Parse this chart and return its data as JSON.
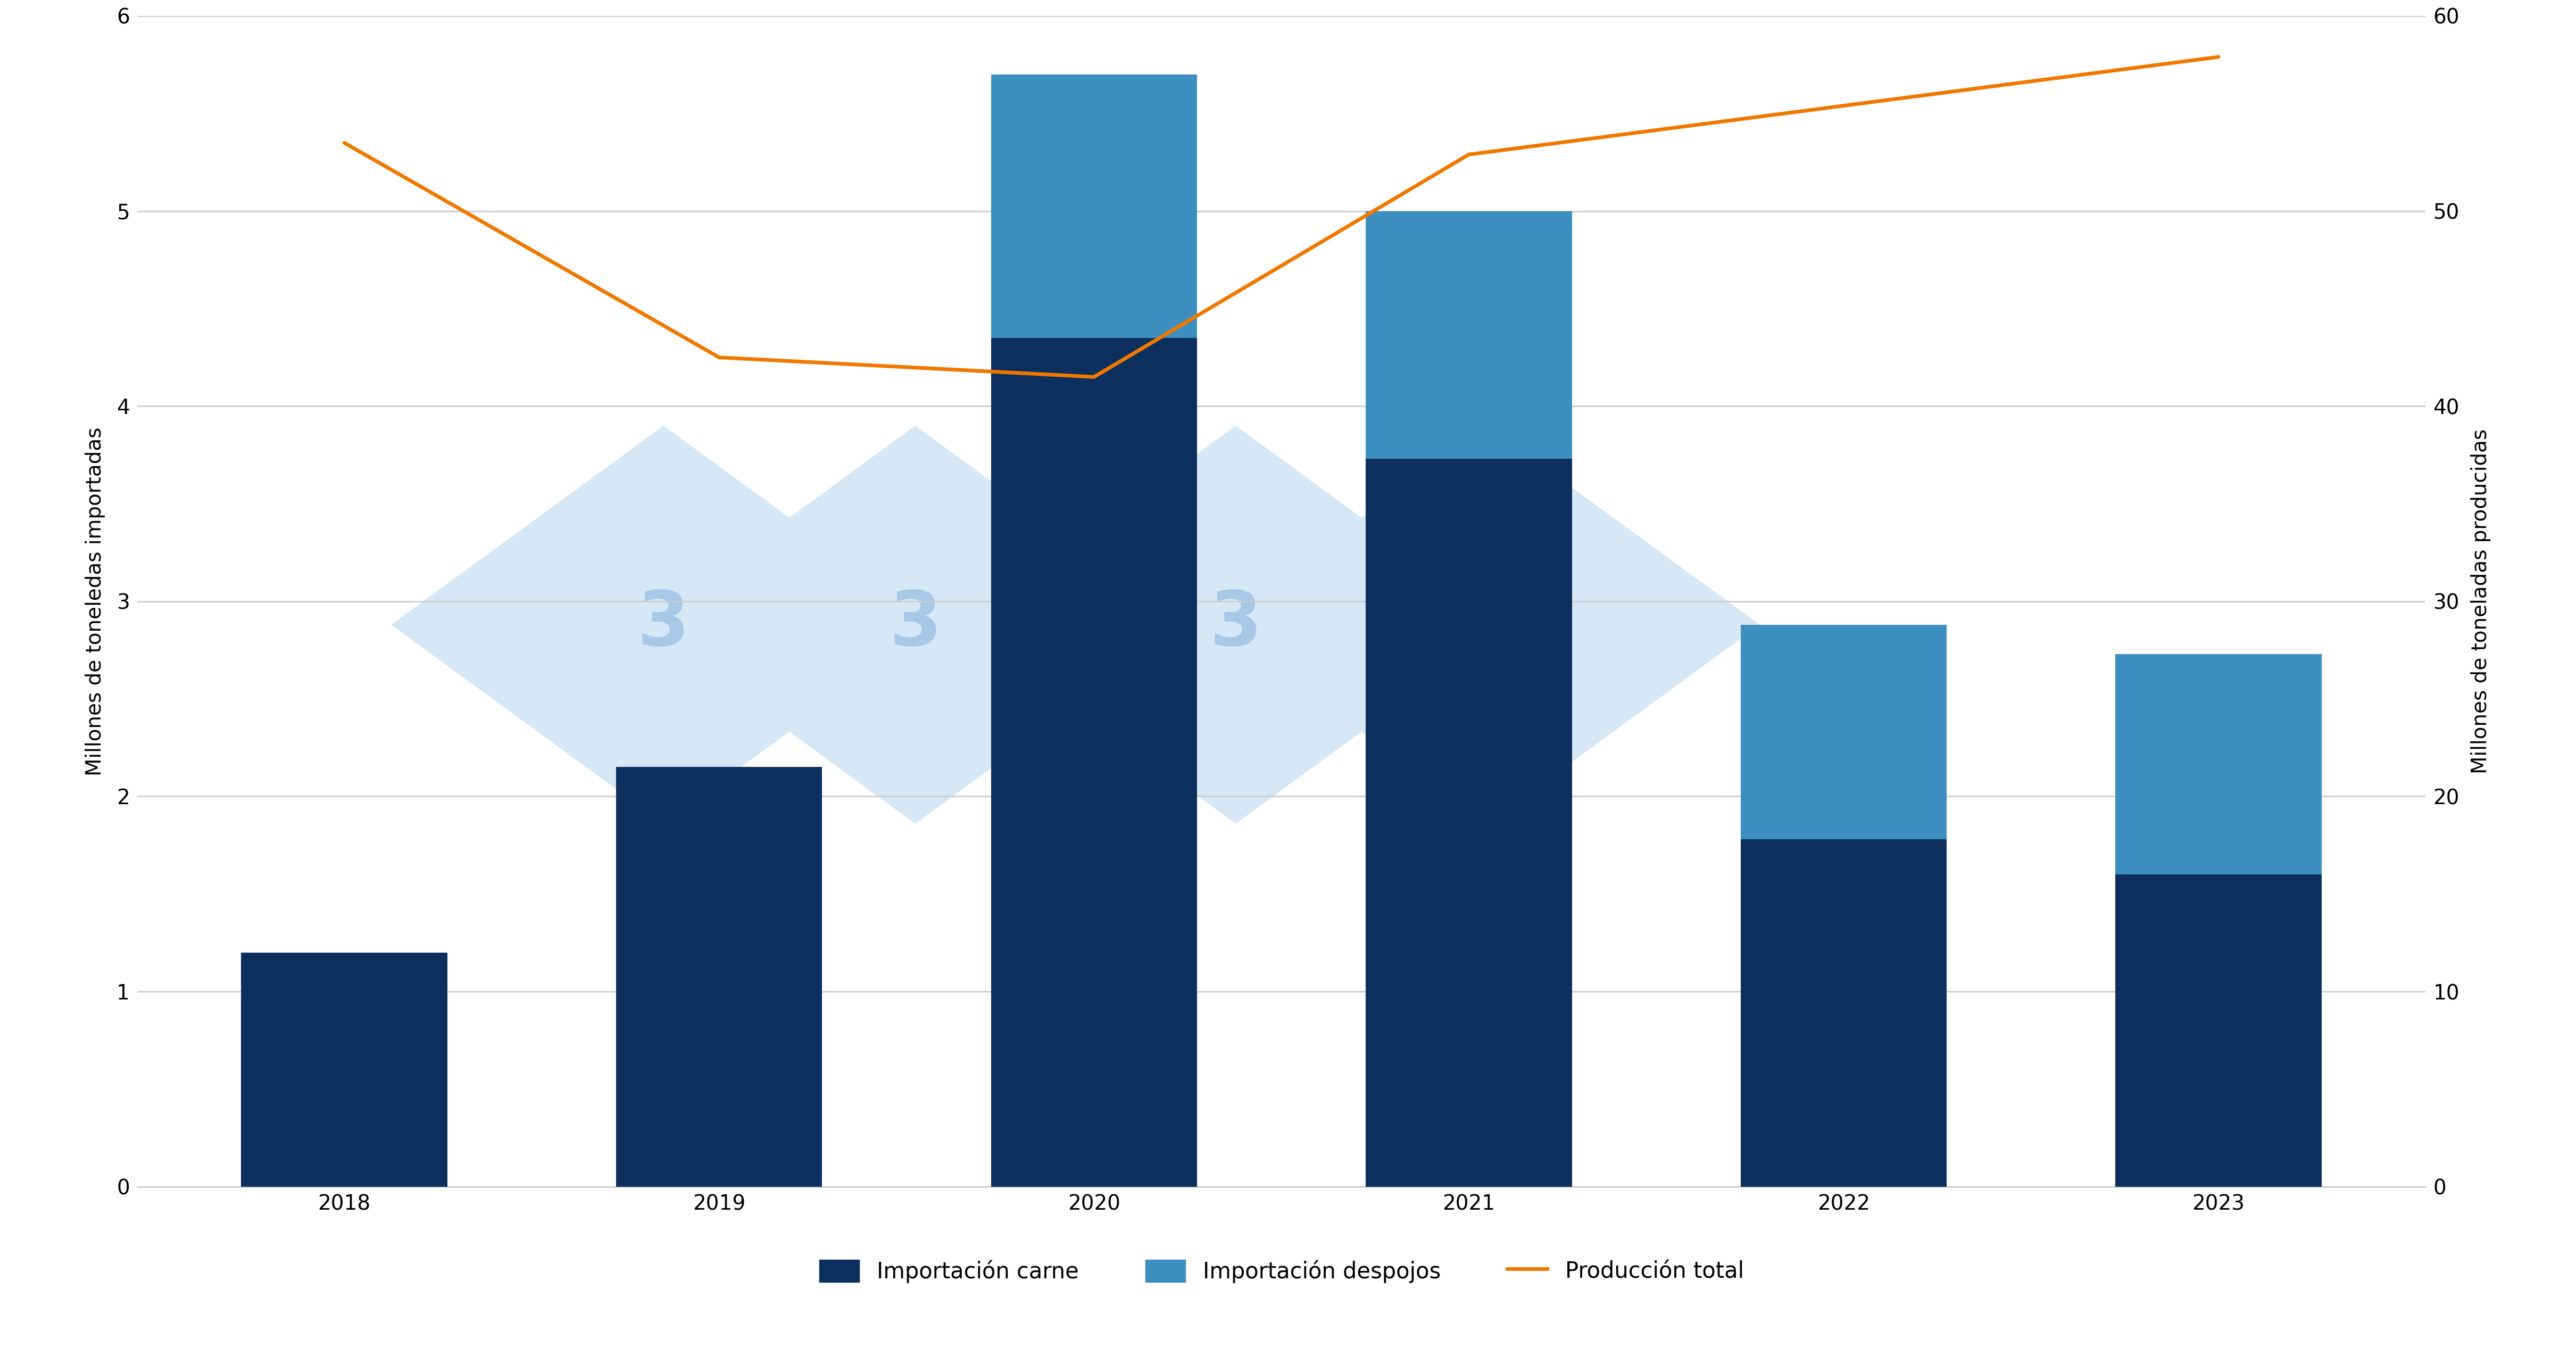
{
  "years": [
    2018,
    2019,
    2020,
    2021,
    2022,
    2023
  ],
  "importacion_carne": [
    1.2,
    2.15,
    4.35,
    3.73,
    1.78,
    1.6
  ],
  "importacion_despojos": [
    0.0,
    0.0,
    1.35,
    1.27,
    1.1,
    1.13
  ],
  "produccion_total": [
    53.5,
    42.5,
    41.5,
    52.9,
    55.4,
    57.9
  ],
  "bar_color_carne": "#0d2f5e",
  "bar_color_despojos": "#3d8fbf",
  "line_color": "#f07800",
  "background_color": "#ffffff",
  "ylabel_left": "Millones de toneledas importadas",
  "ylabel_right": "Millones de toneladas producidas",
  "ylim_left": [
    0,
    6
  ],
  "ylim_right": [
    0,
    60
  ],
  "yticks_left": [
    0,
    1,
    2,
    3,
    4,
    5,
    6
  ],
  "yticks_right": [
    0,
    10,
    20,
    30,
    40,
    50,
    60
  ],
  "legend_carne": "Importación carne",
  "legend_despojos": "Importación despojos",
  "legend_produccion": "Producción total",
  "grid_color": "#cccccc",
  "watermark_color_light": "#d6e8f5",
  "watermark_color_mid": "#c2daf0",
  "bar_width": 0.55,
  "tick_fontsize": 28,
  "label_fontsize": 28,
  "legend_fontsize": 30,
  "line_width": 5
}
